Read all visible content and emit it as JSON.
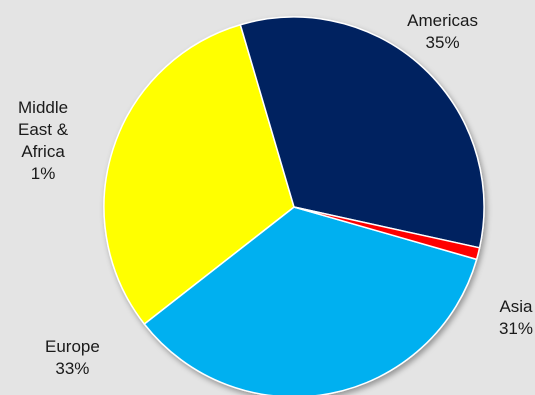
{
  "chart_data": {
    "type": "pie",
    "title": "",
    "start_angle_deg": 106,
    "direction": "clockwise",
    "slices": [
      {
        "label": "Americas",
        "value": 35,
        "value_label": "35%",
        "color": "#00b0f0"
      },
      {
        "label": "Asia",
        "value": 31,
        "value_label": "31%",
        "color": "#ffff00"
      },
      {
        "label": "Europe",
        "value": 33,
        "value_label": "33%",
        "color": "#002060"
      },
      {
        "label_lines": [
          "Middle",
          "East &",
          "Africa"
        ],
        "value": 1,
        "value_label": "1%",
        "color": "#ff0000"
      }
    ],
    "legend": "none",
    "slice_border_color": "#ffffff"
  }
}
